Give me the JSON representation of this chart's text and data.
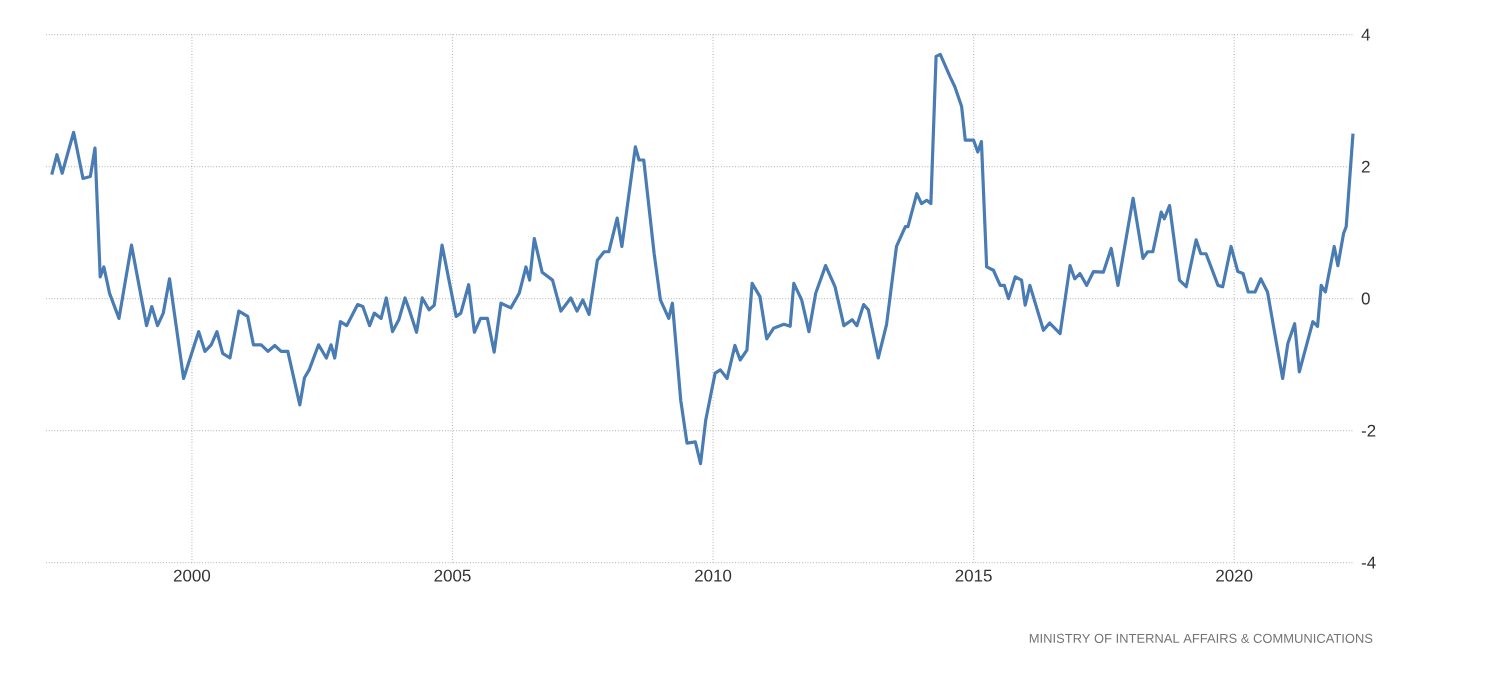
{
  "chart_data": {
    "type": "line",
    "x": [
      1997.31,
      1997.41,
      1997.51,
      1997.73,
      1997.91,
      1998.05,
      1998.14,
      1998.24,
      1998.31,
      1998.42,
      1998.6,
      1998.84,
      1999.13,
      1999.23,
      1999.34,
      1999.45,
      1999.57,
      1999.84,
      2000.13,
      2000.25,
      2000.37,
      2000.48,
      2000.59,
      2000.73,
      2000.9,
      2001.07,
      2001.18,
      2001.33,
      2001.46,
      2001.59,
      2001.71,
      2001.84,
      2002.07,
      2002.16,
      2002.25,
      2002.43,
      2002.58,
      2002.67,
      2002.74,
      2002.85,
      2002.97,
      2003.18,
      2003.28,
      2003.41,
      2003.5,
      2003.63,
      2003.73,
      2003.85,
      2003.97,
      2004.09,
      2004.18,
      2004.31,
      2004.42,
      2004.55,
      2004.65,
      2004.8,
      2005.07,
      2005.16,
      2005.31,
      2005.42,
      2005.54,
      2005.67,
      2005.8,
      2005.93,
      2006.12,
      2006.28,
      2006.41,
      2006.48,
      2006.57,
      2006.72,
      2006.92,
      2007.08,
      2007.27,
      2007.39,
      2007.5,
      2007.62,
      2007.78,
      2007.91,
      2008.0,
      2008.16,
      2008.25,
      2008.51,
      2008.58,
      2008.67,
      2008.87,
      2008.99,
      2009.15,
      2009.22,
      2009.38,
      2009.5,
      2009.66,
      2009.76,
      2009.86,
      2010.04,
      2010.14,
      2010.27,
      2010.42,
      2010.52,
      2010.65,
      2010.75,
      2010.9,
      2011.03,
      2011.16,
      2011.36,
      2011.48,
      2011.55,
      2011.7,
      2011.84,
      2011.97,
      2012.16,
      2012.34,
      2012.51,
      2012.67,
      2012.76,
      2012.89,
      2012.98,
      2013.17,
      2013.33,
      2013.52,
      2013.69,
      2013.74,
      2013.91,
      2014.0,
      2014.1,
      2014.18,
      2014.28,
      2014.36,
      2014.55,
      2014.64,
      2014.77,
      2014.84,
      2015.0,
      2015.08,
      2015.15,
      2015.25,
      2015.38,
      2015.51,
      2015.59,
      2015.67,
      2015.8,
      2015.92,
      2015.99,
      2016.08,
      2016.34,
      2016.46,
      2016.66,
      2016.85,
      2016.94,
      2017.04,
      2017.17,
      2017.3,
      2017.49,
      2017.64,
      2017.77,
      2018.06,
      2018.25,
      2018.34,
      2018.44,
      2018.6,
      2018.66,
      2018.76,
      2018.95,
      2019.08,
      2019.27,
      2019.36,
      2019.46,
      2019.69,
      2019.78,
      2019.94,
      2020.07,
      2020.17,
      2020.27,
      2020.4,
      2020.51,
      2020.64,
      2020.93,
      2021.03,
      2021.16,
      2021.25,
      2021.51,
      2021.6,
      2021.67,
      2021.75,
      2021.92,
      2021.99,
      2022.1,
      2022.15,
      2022.28
    ],
    "values": [
      1.88,
      2.18,
      1.9,
      2.52,
      1.82,
      1.85,
      2.28,
      0.33,
      0.48,
      0.08,
      -0.3,
      0.81,
      -0.41,
      -0.12,
      -0.41,
      -0.22,
      0.3,
      -1.21,
      -0.5,
      -0.8,
      -0.7,
      -0.5,
      -0.83,
      -0.9,
      -0.19,
      -0.27,
      -0.7,
      -0.7,
      -0.8,
      -0.71,
      -0.8,
      -0.8,
      -1.61,
      -1.2,
      -1.08,
      -0.7,
      -0.9,
      -0.7,
      -0.9,
      -0.35,
      -0.41,
      -0.09,
      -0.12,
      -0.41,
      -0.22,
      -0.3,
      0.01,
      -0.5,
      -0.32,
      0.01,
      -0.19,
      -0.51,
      0.01,
      -0.17,
      -0.1,
      0.81,
      -0.27,
      -0.22,
      0.21,
      -0.51,
      -0.3,
      -0.3,
      -0.81,
      -0.07,
      -0.14,
      0.08,
      0.48,
      0.28,
      0.91,
      0.4,
      0.28,
      -0.19,
      0.01,
      -0.19,
      -0.02,
      -0.24,
      0.58,
      0.71,
      0.71,
      1.22,
      0.79,
      2.3,
      2.1,
      2.1,
      0.68,
      -0.02,
      -0.3,
      -0.07,
      -1.54,
      -2.19,
      -2.17,
      -2.5,
      -1.84,
      -1.13,
      -1.08,
      -1.21,
      -0.71,
      -0.93,
      -0.78,
      0.23,
      0.03,
      -0.61,
      -0.45,
      -0.39,
      -0.42,
      0.23,
      -0.02,
      -0.5,
      0.08,
      0.5,
      0.18,
      -0.41,
      -0.32,
      -0.41,
      -0.09,
      -0.17,
      -0.9,
      -0.39,
      0.79,
      1.09,
      1.09,
      1.59,
      1.44,
      1.49,
      1.44,
      3.67,
      3.7,
      3.36,
      3.21,
      2.91,
      2.4,
      2.4,
      2.22,
      2.38,
      0.48,
      0.43,
      0.2,
      0.2,
      0.0,
      0.33,
      0.28,
      -0.1,
      0.2,
      -0.48,
      -0.37,
      -0.53,
      0.5,
      0.3,
      0.38,
      0.2,
      0.41,
      0.4,
      0.76,
      0.2,
      1.52,
      0.61,
      0.71,
      0.71,
      1.31,
      1.21,
      1.41,
      0.28,
      0.18,
      0.89,
      0.68,
      0.68,
      0.2,
      0.18,
      0.79,
      0.41,
      0.38,
      0.1,
      0.1,
      0.3,
      0.1,
      -1.21,
      -0.68,
      -0.38,
      -1.11,
      -0.35,
      -0.42,
      0.2,
      0.1,
      0.79,
      0.5,
      0.99,
      1.09,
      2.5
    ],
    "color": "#4a7cb4",
    "xlim": [
      1997.2,
      2022.3
    ],
    "ylim": [
      -4,
      4
    ],
    "xticks": [
      2000,
      2005,
      2010,
      2015,
      2020
    ],
    "yticks": [
      -4,
      -2,
      0,
      2,
      4
    ],
    "grid": true,
    "marker": "none",
    "line_style": "solid",
    "annotations": [
      "MINISTRY OF INTERNAL AFFAIRS & COMMUNICATIONS"
    ]
  }
}
